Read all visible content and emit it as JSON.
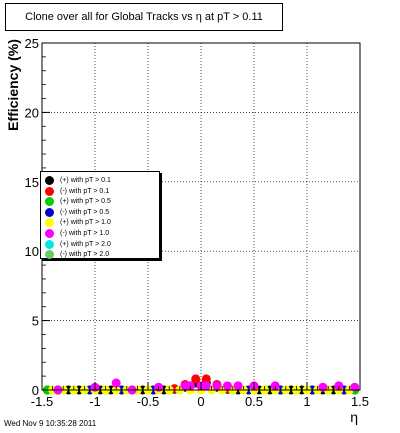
{
  "chart_data": {
    "type": "scatter",
    "title": "Clone  over all for Global Tracks vs η at pT > 0.11",
    "xlabel": "η",
    "ylabel": "Efficiency (%)",
    "xlim": [
      -1.5,
      1.5
    ],
    "ylim": [
      0,
      25
    ],
    "grid": true,
    "legend_position": "left",
    "x_ticks": [
      "-1.5",
      "-1",
      "-0.5",
      "0",
      "0.5",
      "1",
      "1.5"
    ],
    "y_ticks": [
      "0",
      "5",
      "10",
      "15",
      "20",
      "25"
    ],
    "series": [
      {
        "name": "(+) with pT > 0.1",
        "color": "#000000",
        "x": [
          -1.45,
          -1.35,
          -1.25,
          -1.15,
          -1.05,
          -0.95,
          -0.85,
          -0.75,
          -0.65,
          -0.55,
          -0.45,
          -0.35,
          -0.25,
          -0.15,
          -0.05,
          0.05,
          0.15,
          0.25,
          0.35,
          0.45,
          0.55,
          0.65,
          0.75,
          0.85,
          0.95,
          1.05,
          1.15,
          1.25,
          1.35,
          1.45
        ],
        "y": [
          0,
          0,
          0,
          0,
          0,
          0,
          0,
          0,
          0,
          0,
          0,
          0,
          0.05,
          0.2,
          0.5,
          0.5,
          0.2,
          0.05,
          0,
          0,
          0,
          0,
          0,
          0,
          0,
          0,
          0,
          0,
          0,
          0
        ]
      },
      {
        "name": "(-) with pT > 0.1",
        "color": "#ff0000",
        "x": [
          -0.25,
          -0.15,
          -0.05,
          0.05,
          0.15,
          0.25
        ],
        "y": [
          0.1,
          0.4,
          0.8,
          0.8,
          0.4,
          0.1
        ]
      },
      {
        "name": "(+) with pT > 0.5",
        "color": "#00cc00",
        "x": [
          -1.45,
          -1.2,
          -0.9,
          -0.6,
          -0.3,
          0.3,
          0.6,
          0.9,
          1.2,
          1.45
        ],
        "y": [
          0,
          0,
          0,
          0,
          0,
          0,
          0,
          0,
          0,
          0
        ]
      },
      {
        "name": "(-) with pT > 0.5",
        "color": "#0000cc",
        "x": [
          -1.35,
          -1.05,
          -0.75,
          -0.45,
          0.45,
          0.75,
          1.05,
          1.35
        ],
        "y": [
          0,
          0,
          0,
          0,
          0,
          0,
          0,
          0
        ]
      },
      {
        "name": "(+) with pT > 1.0",
        "color": "#ffff00",
        "x": [
          -1.4,
          -1.3,
          -1.2,
          -1.1,
          -1.0,
          -0.9,
          -0.8,
          -0.7,
          -0.6,
          -0.5,
          -0.4,
          -0.3,
          -0.2,
          -0.1,
          0.0,
          0.1,
          0.2,
          0.3,
          0.4,
          0.5,
          0.6,
          0.7,
          0.8,
          0.9,
          1.0,
          1.1,
          1.2,
          1.3,
          1.4
        ],
        "y": [
          0,
          0,
          0,
          0,
          0,
          0,
          0,
          0,
          0,
          0,
          0,
          0,
          0,
          0,
          0,
          0,
          0,
          0,
          0,
          0,
          0,
          0,
          0,
          0,
          0,
          0,
          0,
          0,
          0
        ]
      },
      {
        "name": "(-) with pT > 1.0",
        "color": "#ff00ff",
        "x": [
          -1.35,
          -1.0,
          -0.8,
          -0.65,
          -0.4,
          -0.15,
          -0.1,
          0.0,
          0.05,
          0.15,
          0.25,
          0.35,
          0.5,
          0.7,
          1.15,
          1.3,
          1.45
        ],
        "y": [
          0,
          0.2,
          0.5,
          0,
          0.2,
          0.3,
          0.3,
          0.3,
          0.3,
          0.3,
          0.3,
          0.3,
          0.3,
          0.3,
          0.2,
          0.3,
          0.2
        ]
      },
      {
        "name": "(+) with pT > 2.0",
        "color": "#00e5e5",
        "x": [],
        "y": []
      },
      {
        "name": "(-) with pT > 2.0",
        "color": "#66cc66",
        "x": [],
        "y": []
      }
    ]
  },
  "footer": {
    "timestamp": "Wed Nov  9 10:35:28 2011"
  }
}
